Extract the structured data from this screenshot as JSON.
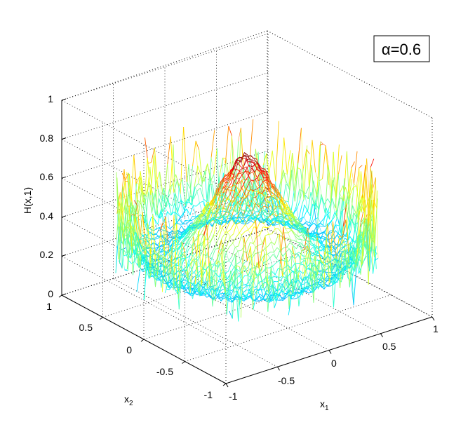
{
  "chart_data": {
    "type": "surface",
    "title": "",
    "annotation": "α=0.6",
    "xlabel": "x",
    "xlabel_sub": "1",
    "ylabel": "x",
    "ylabel_sub": "2",
    "zlabel": "H(x,1)",
    "xlim": [
      -1,
      1
    ],
    "ylim": [
      -1,
      1
    ],
    "zlim": [
      0,
      1
    ],
    "x_ticks": [
      "-1",
      "-0.5",
      "0",
      "0.5",
      "1"
    ],
    "y_ticks": [
      "-1",
      "-0.5",
      "0",
      "0.5",
      "1"
    ],
    "z_ticks": [
      "0",
      "0.2",
      "0.4",
      "0.6",
      "0.8",
      "1"
    ],
    "grid": true,
    "colormap": "jet",
    "domain": "unit disk",
    "surface_profile": {
      "r": [
        0,
        0.1,
        0.2,
        0.3,
        0.4,
        0.5,
        0.6,
        0.7,
        0.8,
        0.9,
        1.0
      ],
      "H": [
        0.78,
        0.72,
        0.62,
        0.5,
        0.4,
        0.32,
        0.27,
        0.24,
        0.26,
        0.38,
        0.42
      ]
    }
  }
}
